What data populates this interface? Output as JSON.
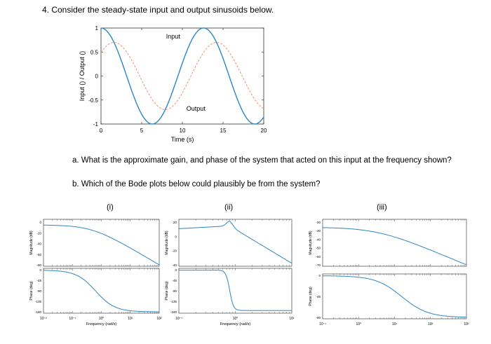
{
  "question": {
    "title": "4.  Consider the steady-state input and output sinusoids below.",
    "part_a": "a.   What is the approximate gain, and phase of the system that acted on this input at the frequency shown?",
    "part_b": "b.   Which of the Bode plots below could plausibly be from the system?"
  },
  "chart_data": [
    {
      "type": "line",
      "xlabel": "Time (s)",
      "ylabel": "Input () / Output ()",
      "xlim": [
        0,
        20
      ],
      "ylim": [
        -1,
        1
      ],
      "x_ticks": [
        "0",
        "5",
        "10",
        "15",
        "20"
      ],
      "y_ticks": [
        "-1",
        "-0.5",
        "0",
        "0.5",
        "1"
      ],
      "annotations": [
        "Input",
        "Output"
      ],
      "series": [
        {
          "name": "Input",
          "color": "#2e86c1",
          "style": "solid",
          "amplitude": 1.0,
          "period": 12.6,
          "peak_time": 0
        },
        {
          "name": "Output",
          "color": "#e8947a",
          "style": "dashed",
          "amplitude": 0.7,
          "period": 12.6,
          "peak_time": 1.6
        }
      ]
    },
    {
      "type": "line",
      "label": "(i)",
      "xlabel": "Frequency  (rad/s)",
      "mag_ylabel": "Magnitude (dB)",
      "phase_ylabel": "Phase (deg)",
      "x_ticks": [
        "10⁻²",
        "10⁻¹",
        "10⁰",
        "10¹",
        "10²"
      ],
      "mag_ticks": [
        "0",
        "-20",
        "-40",
        "-60",
        "-80"
      ],
      "phase_ticks": [
        "0",
        "-45",
        "-90",
        "-135",
        "-180"
      ],
      "color": "#2e86c1"
    },
    {
      "type": "line",
      "label": "(ii)",
      "xlabel": "Frequency  (rad/s)",
      "mag_ylabel": "Magnitude (dB)",
      "phase_ylabel": "Phase (deg)",
      "x_ticks": [
        "10⁻¹",
        "10⁰",
        "10¹"
      ],
      "mag_ticks": [
        "20",
        "0",
        "-20",
        "-40"
      ],
      "phase_ticks": [
        "0",
        "-45",
        "-90",
        "-135",
        "-180"
      ],
      "color": "#2e86c1"
    },
    {
      "type": "line",
      "label": "(iii)",
      "xlabel": "",
      "mag_ylabel": "Magnitude (dB)",
      "phase_ylabel": "Phase (deg)",
      "x_ticks": [
        "10⁻¹",
        "10⁰",
        "10¹",
        "10²",
        "10³"
      ],
      "mag_ticks": [
        "-20",
        "-30",
        "-40",
        "-50",
        "-60",
        "-70"
      ],
      "phase_ticks": [
        "0",
        "-45",
        "-90"
      ],
      "color": "#2e86c1"
    }
  ]
}
